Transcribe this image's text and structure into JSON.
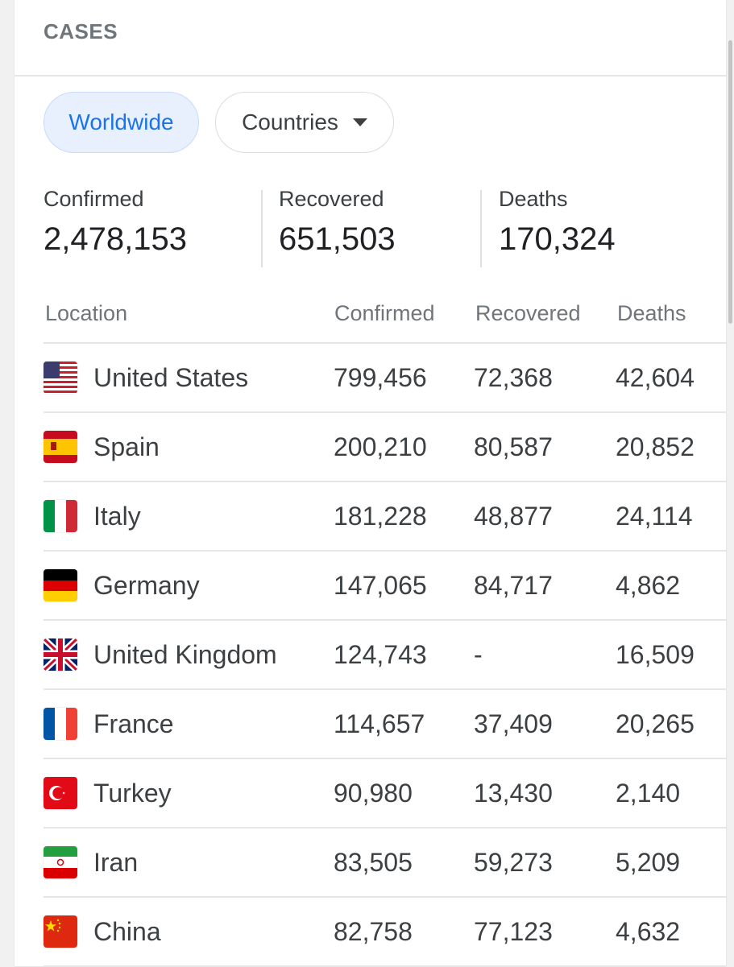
{
  "header": {
    "title": "CASES"
  },
  "filters": {
    "worldwide_label": "Worldwide",
    "countries_label": "Countries"
  },
  "summary": {
    "confirmed": {
      "label": "Confirmed",
      "value": "2,478,153"
    },
    "recovered": {
      "label": "Recovered",
      "value": "651,503"
    },
    "deaths": {
      "label": "Deaths",
      "value": "170,324"
    }
  },
  "table": {
    "columns": [
      "Location",
      "Confirmed",
      "Recovered",
      "Deaths"
    ],
    "rows": [
      {
        "flag": "us-flag-icon",
        "location": "United States",
        "confirmed": "799,456",
        "recovered": "72,368",
        "deaths": "42,604"
      },
      {
        "flag": "spain-flag-icon",
        "location": "Spain",
        "confirmed": "200,210",
        "recovered": "80,587",
        "deaths": "20,852"
      },
      {
        "flag": "italy-flag-icon",
        "location": "Italy",
        "confirmed": "181,228",
        "recovered": "48,877",
        "deaths": "24,114"
      },
      {
        "flag": "germany-flag-icon",
        "location": "Germany",
        "confirmed": "147,065",
        "recovered": "84,717",
        "deaths": "4,862"
      },
      {
        "flag": "uk-flag-icon",
        "location": "United Kingdom",
        "confirmed": "124,743",
        "recovered": "-",
        "deaths": "16,509"
      },
      {
        "flag": "france-flag-icon",
        "location": "France",
        "confirmed": "114,657",
        "recovered": "37,409",
        "deaths": "20,265"
      },
      {
        "flag": "turkey-flag-icon",
        "location": "Turkey",
        "confirmed": "90,980",
        "recovered": "13,430",
        "deaths": "2,140"
      },
      {
        "flag": "iran-flag-icon",
        "location": "Iran",
        "confirmed": "83,505",
        "recovered": "59,273",
        "deaths": "5,209"
      },
      {
        "flag": "china-flag-icon",
        "location": "China",
        "confirmed": "82,758",
        "recovered": "77,123",
        "deaths": "4,632"
      }
    ]
  },
  "colors": {
    "accent": "#1a73e8",
    "chip_active_bg": "#e8f0fe",
    "muted_text": "#70757a"
  }
}
